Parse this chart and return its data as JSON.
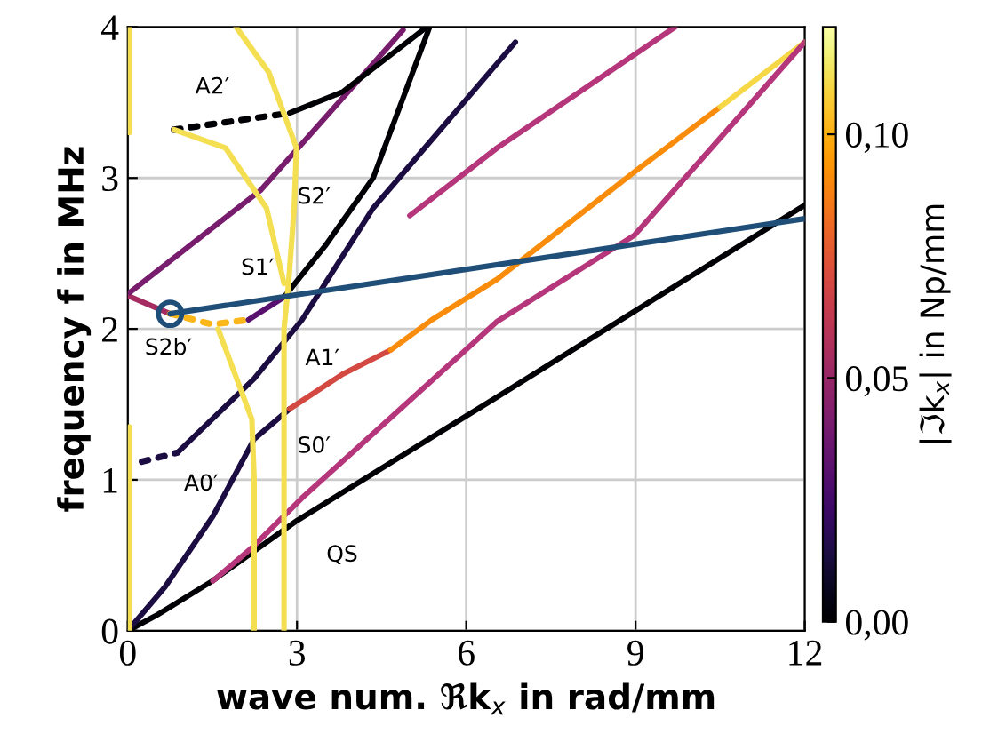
{
  "chart_data": {
    "type": "line",
    "xlabel": "wave num. ℜk$_{x}$ in rad/mm",
    "ylabel": "frequency f in MHz",
    "clabel": "|ℑk$_{x}$| in Np/mm",
    "xlim": [
      0,
      12
    ],
    "ylim": [
      0,
      4
    ],
    "xticks": [
      0,
      3,
      6,
      9,
      12
    ],
    "yticks": [
      0,
      1,
      2,
      3,
      4
    ],
    "grid": true,
    "clim": [
      0,
      0.122
    ],
    "cticks": [
      {
        "value": 0,
        "label": "0,00"
      },
      {
        "value": 0.05,
        "label": "0,05"
      },
      {
        "value": 0.1,
        "label": "0,10"
      }
    ],
    "series": [
      {
        "x": [
          0,
          0.5,
          1.5,
          3,
          6.55,
          9,
          12
        ],
        "values": [
          0,
          0.1,
          0.33,
          0.73,
          1.55,
          2.12,
          2.82
        ],
        "color": "#000004"
      },
      {
        "x": [
          0,
          0.66,
          1.51,
          2.24,
          2.87
        ],
        "values": [
          0,
          0.29,
          0.76,
          1.27,
          1.47
        ],
        "color": "#1b0c41"
      },
      {
        "x": [
          2.87,
          3.81,
          4.66
        ],
        "values": [
          1.47,
          1.7,
          1.86
        ],
        "color": "#d44842"
      },
      {
        "x": [
          4.66,
          5.39,
          6.55,
          8.98,
          10.5
        ],
        "values": [
          1.86,
          2.06,
          2.33,
          3.04,
          3.47
        ],
        "color": "#f98c0a"
      },
      {
        "x": [
          10.5,
          12
        ],
        "values": [
          3.47,
          3.9
        ],
        "color": "#f6d746"
      },
      {
        "x": [
          1.51,
          2.2,
          3.09,
          6.55,
          8.98,
          12
        ],
        "values": [
          0.33,
          0.55,
          0.88,
          2.05,
          2.62,
          3.9
        ],
        "color": "#b5367a"
      },
      {
        "x": [
          0.25,
          0.88
        ],
        "values": [
          1.12,
          1.18
        ],
        "color": "#1b0c41",
        "line_style": "dotted"
      },
      {
        "x": [
          0.88,
          2.24,
          3.09,
          4.35,
          6.87
        ],
        "values": [
          1.18,
          1.67,
          2.06,
          2.8,
          3.9
        ],
        "color": "#1b0c41"
      },
      {
        "x": [
          0,
          0.75
        ],
        "values": [
          2.22,
          2.1
        ],
        "color": "#a52c60"
      },
      {
        "x": [
          0.75,
          1.5,
          2.14
        ],
        "values": [
          2.1,
          2.03,
          2.06
        ],
        "color": "#fbb61a",
        "line_style": "dotted"
      },
      {
        "x": [
          2.14,
          2.77
        ],
        "values": [
          2.06,
          2.21
        ],
        "color": "#57106e"
      },
      {
        "x": [
          2.77,
          3.5,
          4.35,
          5.35
        ],
        "values": [
          2.21,
          2.55,
          3,
          4
        ],
        "color": "#000004"
      },
      {
        "x": [
          0.03,
          2.36,
          4.88
        ],
        "values": [
          2.24,
          2.92,
          3.98
        ],
        "color": "#781c6d"
      },
      {
        "x": [
          5,
          6.55,
          9.7
        ],
        "values": [
          2.75,
          3.2,
          4
        ],
        "color": "#b5367a"
      },
      {
        "x": [
          0.82,
          2.87
        ],
        "values": [
          3.32,
          3.43
        ],
        "color": "#000004",
        "line_style": "dotted"
      },
      {
        "x": [
          2.87,
          3.81,
          5.3
        ],
        "values": [
          3.43,
          3.57,
          4
        ],
        "color": "#000004"
      },
      {
        "x": [
          0.03,
          0.03
        ],
        "values": [
          3.3,
          4
        ],
        "color": "#f4df53"
      },
      {
        "x": [
          0.03,
          0.03
        ],
        "values": [
          0,
          1.35
        ],
        "color": "#f4df53"
      },
      {
        "x": [
          1.92,
          2.5,
          2.99,
          2.95,
          2.85,
          2.77,
          2.77
        ],
        "values": [
          4,
          3.7,
          3.2,
          2.8,
          2.3,
          2,
          0
        ],
        "color": "#f4df53"
      },
      {
        "x": [
          0.82,
          1.73,
          2.46,
          2.77
        ],
        "values": [
          3.32,
          3.2,
          2.8,
          2.3
        ],
        "color": "#f4df53"
      },
      {
        "x": [
          1.6,
          1.9,
          2.2,
          2.24,
          2.24
        ],
        "values": [
          2,
          1.7,
          1.4,
          1,
          0
        ],
        "color": "#f4df53"
      },
      {
        "x": [
          0.75,
          12
        ],
        "values": [
          2.1,
          2.73
        ],
        "color": "#1f4e79"
      },
      {
        "type": "scatter",
        "x": [
          0.75
        ],
        "values": [
          2.1
        ],
        "color": "#1f4e79",
        "marker": "circle"
      }
    ],
    "annotations": [
      "A2′",
      "S2′",
      "S1′",
      "S2b′",
      "A1′",
      "S0′",
      "A0′",
      "QS"
    ]
  }
}
